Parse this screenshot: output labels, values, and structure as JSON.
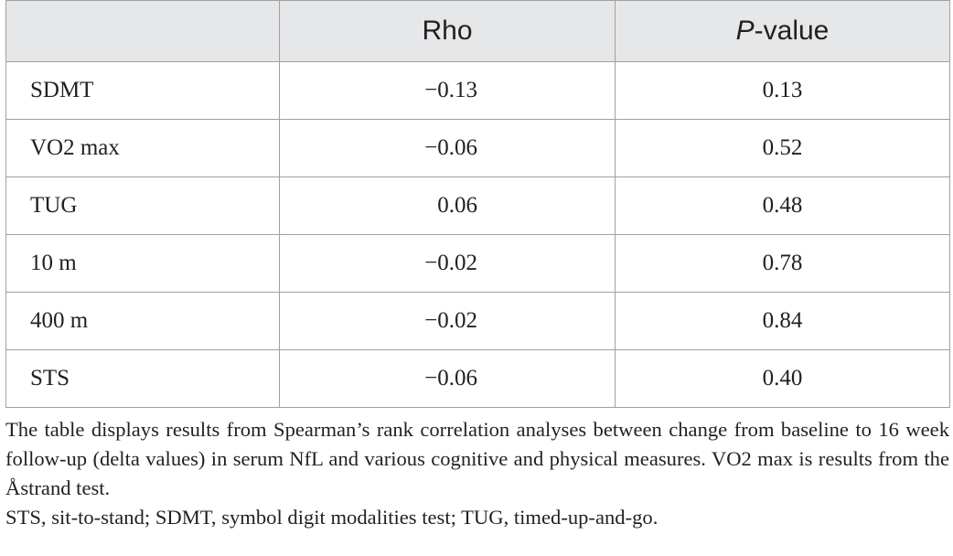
{
  "table": {
    "header": {
      "rho": "Rho",
      "p_value": {
        "italic": "P",
        "rest": "-value"
      }
    },
    "rows": [
      [
        "SDMT",
        "−0.13",
        "0.13"
      ],
      [
        "VO2 max",
        "−0.06",
        "0.52"
      ],
      [
        "TUG",
        "0.06",
        "0.48"
      ],
      [
        "10 m",
        "−0.02",
        "0.78"
      ],
      [
        "400 m",
        "−0.02",
        "0.84"
      ],
      [
        "STS",
        "−0.06",
        "0.40"
      ]
    ]
  },
  "footnote": {
    "description": "The table displays results from Spearman’s rank correlation analyses between change from baseline to 16 week follow-up (delta values) in serum NfL and various cognitive and physical measures. VO2 max is results from the Åstrand test.",
    "abbreviations": "STS, sit-to-stand; SDMT, symbol digit modalities test; TUG, timed-up-and-go."
  }
}
